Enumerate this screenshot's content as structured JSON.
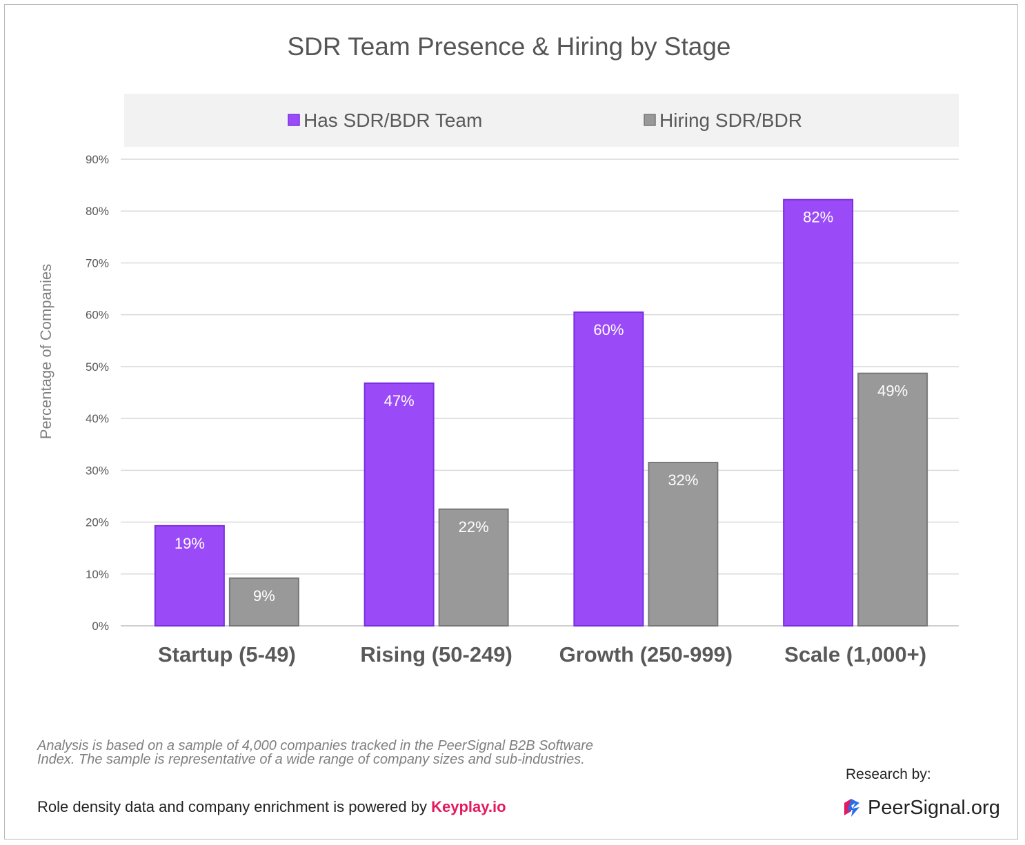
{
  "chart_data": {
    "type": "bar",
    "title": "SDR Team Presence & Hiring by Stage",
    "xlabel": "",
    "ylabel": "Percentage of Companies",
    "categories": [
      "Startup (5-49)",
      "Rising (50-249)",
      "Growth (250-999)",
      "Scale (1,000+)"
    ],
    "series": [
      {
        "name": "Has SDR/BDR Team",
        "values": [
          19.3,
          46.8,
          60.5,
          82.2
        ],
        "labels": [
          "19%",
          "47%",
          "60%",
          "82%"
        ],
        "color": "#9a4bf7",
        "border": "#7a2ee0"
      },
      {
        "name": "Hiring SDR/BDR",
        "values": [
          9.2,
          22.5,
          31.5,
          48.7
        ],
        "labels": [
          "9%",
          "22%",
          "32%",
          "49%"
        ],
        "color": "#999999",
        "border": "#777777"
      }
    ],
    "ylim": [
      0,
      90
    ],
    "yticks": [
      0,
      10,
      20,
      30,
      40,
      50,
      60,
      70,
      80,
      90
    ],
    "ytick_labels": [
      "0%",
      "10%",
      "20%",
      "30%",
      "40%",
      "50%",
      "60%",
      "70%",
      "80%",
      "90%"
    ],
    "grid": true,
    "legend_position": "top"
  },
  "footer": {
    "note": "Analysis is based on a sample of 4,000 companies tracked in the PeerSignal B2B Software Index. The sample is representative of a wide range of company sizes and sub-industries.",
    "powered_text": "Role density data and company enrichment is powered by",
    "powered_brand": "Keyplay.io",
    "research_by": "Research by:",
    "logo_text": "PeerSignal.org",
    "logo_icon": "peersignal-logo-icon",
    "brand_color": "#e5195e"
  }
}
